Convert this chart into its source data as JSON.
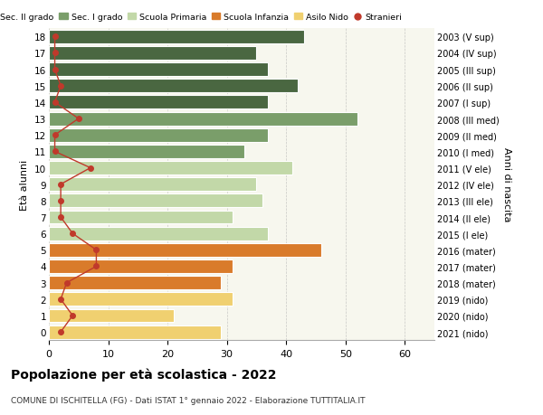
{
  "ages": [
    18,
    17,
    16,
    15,
    14,
    13,
    12,
    11,
    10,
    9,
    8,
    7,
    6,
    5,
    4,
    3,
    2,
    1,
    0
  ],
  "bar_values": [
    43,
    35,
    37,
    42,
    37,
    52,
    37,
    33,
    41,
    35,
    36,
    31,
    37,
    46,
    31,
    29,
    31,
    21,
    29
  ],
  "bar_colors": [
    "#4a6741",
    "#4a6741",
    "#4a6741",
    "#4a6741",
    "#4a6741",
    "#7a9e6a",
    "#7a9e6a",
    "#7a9e6a",
    "#c2d8a8",
    "#c2d8a8",
    "#c2d8a8",
    "#c2d8a8",
    "#c2d8a8",
    "#d97b2b",
    "#d97b2b",
    "#d97b2b",
    "#f0d070",
    "#f0d070",
    "#f0d070"
  ],
  "stranieri_values": [
    1,
    1,
    1,
    2,
    1,
    5,
    1,
    1,
    7,
    2,
    2,
    2,
    4,
    8,
    8,
    3,
    2,
    4,
    2
  ],
  "right_labels": [
    "2003 (V sup)",
    "2004 (IV sup)",
    "2005 (III sup)",
    "2006 (II sup)",
    "2007 (I sup)",
    "2008 (III med)",
    "2009 (II med)",
    "2010 (I med)",
    "2011 (V ele)",
    "2012 (IV ele)",
    "2013 (III ele)",
    "2014 (II ele)",
    "2015 (I ele)",
    "2016 (mater)",
    "2017 (mater)",
    "2018 (mater)",
    "2019 (nido)",
    "2020 (nido)",
    "2021 (nido)"
  ],
  "legend_labels": [
    "Sec. II grado",
    "Sec. I grado",
    "Scuola Primaria",
    "Scuola Infanzia",
    "Asilo Nido",
    "Stranieri"
  ],
  "legend_colors": [
    "#4a6741",
    "#7a9e6a",
    "#c2d8a8",
    "#d97b2b",
    "#f0d070",
    "#c0392b"
  ],
  "ylabel": "Età alunni",
  "right_ylabel": "Anni di nascita",
  "title": "Popolazione per età scolastica - 2022",
  "subtitle": "COMUNE DI ISCHITELLA (FG) - Dati ISTAT 1° gennaio 2022 - Elaborazione TUTTITALIA.IT",
  "xlim": [
    0,
    65
  ],
  "ylim": [
    -0.5,
    18.5
  ],
  "bg_color": "#ffffff",
  "plot_bg_color": "#f7f7ee",
  "stranieri_color": "#c0392b",
  "stranieri_line_color": "#c0392b"
}
